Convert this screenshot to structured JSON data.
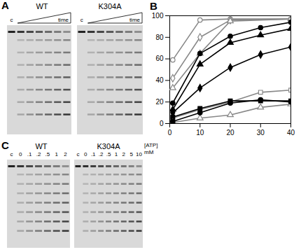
{
  "chart_label": "B",
  "gel_panels": [
    {
      "label": "A",
      "gels": [
        {
          "title": "WT",
          "lanes": [
            "c"
          ],
          "ramp": "time"
        },
        {
          "title": "K304A",
          "lanes": [
            "c"
          ],
          "ramp": "time"
        }
      ]
    },
    {
      "label": "C",
      "gels": [
        {
          "title": "WT",
          "lanes": [
            "c",
            "0",
            ".1",
            ".2",
            ".5",
            "1",
            "2"
          ]
        },
        {
          "title": "K304A",
          "lanes": [
            "c",
            "0",
            ".1",
            ".2",
            ".5",
            "1",
            "2",
            "5",
            "10"
          ]
        }
      ],
      "unit_label": [
        "[ATP]",
        "mM"
      ]
    }
  ],
  "chart_data": {
    "type": "line",
    "xlim": [
      0,
      40
    ],
    "xticks": [
      0,
      10,
      20,
      30,
      40
    ],
    "ylim": [
      0,
      100
    ],
    "yticks": [
      0,
      20,
      40,
      60,
      80,
      100
    ],
    "series": [
      {
        "color": "#888888",
        "marker": "open circle",
        "x": [
          1,
          10,
          20,
          40
        ],
        "values": [
          59,
          96,
          97,
          97
        ]
      },
      {
        "color": "#888888",
        "marker": "open diamond",
        "x": [
          1,
          10,
          20,
          40
        ],
        "values": [
          42,
          80,
          96,
          97
        ]
      },
      {
        "color": "#888888",
        "marker": "open triangle",
        "x": [
          1,
          10,
          20,
          40
        ],
        "values": [
          33,
          65,
          95,
          97
        ]
      },
      {
        "color": "#000000",
        "marker": "circle",
        "x": [
          1,
          10,
          20,
          30,
          40
        ],
        "values": [
          19,
          65,
          81,
          89,
          94
        ]
      },
      {
        "color": "#000000",
        "marker": "triangle",
        "x": [
          1,
          10,
          20,
          30,
          40
        ],
        "values": [
          13,
          55,
          75,
          82,
          88
        ]
      },
      {
        "color": "#000000",
        "marker": "diamond",
        "x": [
          1,
          10,
          20,
          30,
          40
        ],
        "values": [
          10,
          33,
          52,
          64,
          71
        ]
      },
      {
        "color": "#888888",
        "marker": "open square",
        "x": [
          1,
          10,
          20,
          30,
          40
        ],
        "values": [
          5,
          13,
          20,
          29,
          31
        ]
      },
      {
        "color": "#000000",
        "marker": "square",
        "x": [
          1,
          10,
          20,
          30,
          40
        ],
        "values": [
          6,
          14,
          21,
          21,
          21
        ]
      },
      {
        "color": "#888888",
        "marker": "open triangle",
        "x": [
          1,
          10,
          20,
          30,
          40
        ],
        "values": [
          1,
          5,
          8,
          15,
          18
        ]
      },
      {
        "color": "#000000",
        "marker": "circle",
        "x": [
          1,
          10,
          20,
          30,
          40
        ],
        "values": [
          2,
          10,
          19,
          22,
          20
        ]
      }
    ]
  }
}
